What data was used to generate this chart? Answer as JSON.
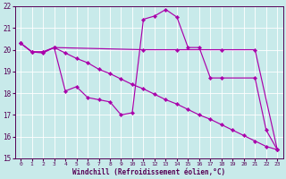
{
  "background_color": "#c8eaea",
  "line_color": "#aa00aa",
  "xlabel": "Windchill (Refroidissement éolien,°C)",
  "xlim_min": -0.5,
  "xlim_max": 23.5,
  "ylim_min": 15,
  "ylim_max": 22,
  "xticks": [
    0,
    1,
    2,
    3,
    4,
    5,
    6,
    7,
    8,
    9,
    10,
    11,
    12,
    13,
    14,
    15,
    16,
    17,
    18,
    19,
    20,
    21,
    22,
    23
  ],
  "yticks": [
    15,
    16,
    17,
    18,
    19,
    20,
    21,
    22
  ],
  "series": [
    {
      "x": [
        0,
        1,
        2,
        3,
        4,
        5,
        6,
        7,
        8,
        9,
        10,
        11,
        12,
        13,
        14,
        15,
        16,
        17,
        18,
        21,
        22,
        23
      ],
      "y": [
        20.3,
        19.9,
        19.9,
        20.1,
        18.1,
        18.3,
        17.8,
        17.7,
        17.6,
        17.0,
        17.1,
        21.4,
        21.55,
        21.85,
        21.5,
        20.1,
        20.1,
        18.7,
        18.7,
        18.7,
        16.3,
        15.4
      ]
    },
    {
      "x": [
        0,
        1,
        2,
        3,
        11,
        14,
        18,
        21,
        23
      ],
      "y": [
        20.3,
        19.9,
        19.9,
        20.1,
        20.0,
        20.0,
        20.0,
        20.0,
        15.4
      ]
    },
    {
      "x": [
        0,
        1,
        2,
        3,
        4,
        5,
        6,
        7,
        8,
        9,
        10,
        11,
        12,
        13,
        14,
        15,
        16,
        17,
        18,
        19,
        20,
        21,
        22,
        23
      ],
      "y": [
        20.3,
        19.9,
        19.85,
        20.1,
        19.85,
        19.6,
        19.4,
        19.1,
        18.9,
        18.65,
        18.4,
        18.2,
        17.95,
        17.7,
        17.5,
        17.25,
        17.0,
        16.8,
        16.55,
        16.3,
        16.05,
        15.8,
        15.55,
        15.4
      ]
    }
  ]
}
